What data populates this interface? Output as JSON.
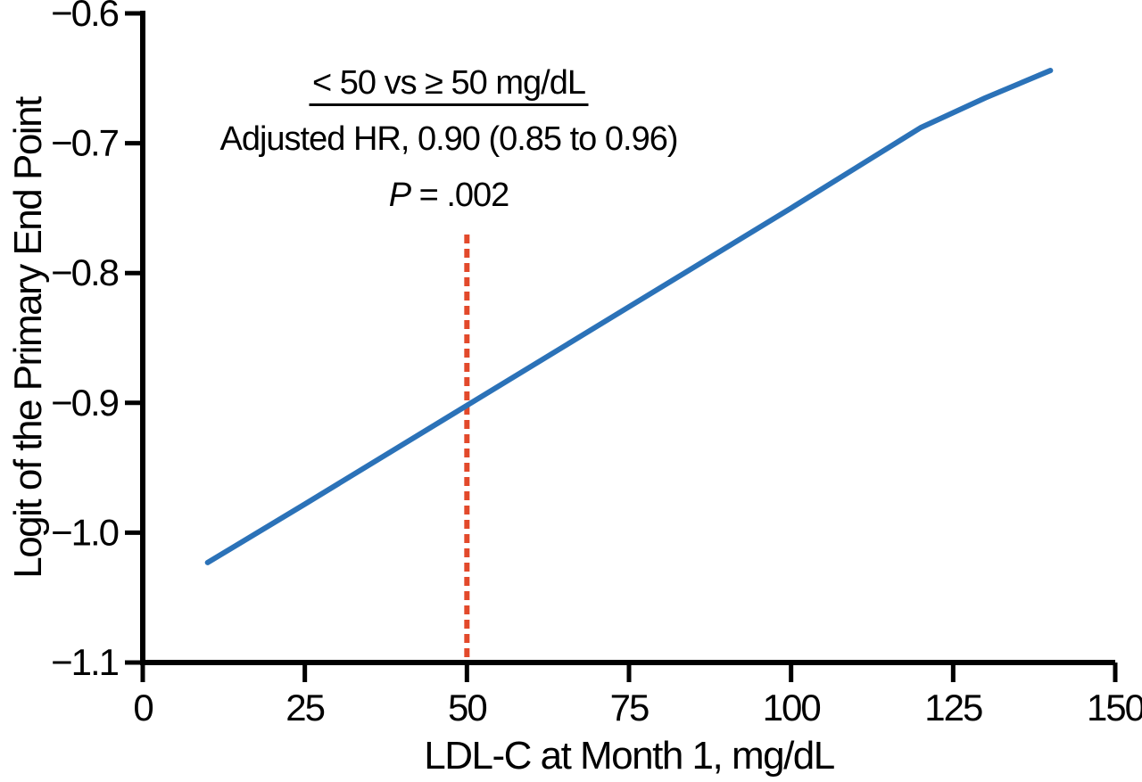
{
  "chart_data": {
    "type": "line",
    "title": "",
    "xlabel": "LDL-C at Month 1, mg/dL",
    "ylabel": "Logit of the Primary End Point",
    "xlim": [
      0,
      150
    ],
    "ylim": [
      -1.1,
      -0.6
    ],
    "grid": false,
    "legend": "none",
    "x_ticks": [
      0,
      25,
      50,
      75,
      100,
      125,
      150
    ],
    "x_tick_labels": [
      "0",
      "25",
      "50",
      "75",
      "100",
      "125",
      "150"
    ],
    "y_ticks": [
      -0.6,
      -0.7,
      -0.8,
      -0.9,
      -1.0,
      -1.1
    ],
    "y_tick_labels": [
      "−0.6",
      "−0.7",
      "−0.8",
      "−0.9",
      "−1.0",
      "−1.1"
    ],
    "series": [
      {
        "name": "logit-of-primary-end-point",
        "color": "#2b72b8",
        "x": [
          10,
          25,
          50,
          75,
          100,
          110,
          120,
          130,
          140
        ],
        "y": [
          -1.023,
          -0.978,
          -0.902,
          -0.826,
          -0.75,
          -0.719,
          -0.688,
          -0.665,
          -0.644
        ]
      }
    ],
    "reference_line": {
      "x": 50,
      "color": "#e2492b",
      "style": "dashed"
    },
    "annotation": {
      "title": "< 50 vs ≥ 50 mg/dL",
      "hr_line": "Adjusted HR, 0.90 (0.85 to 0.96)",
      "p_italic": "P",
      "p_text": " = .002"
    },
    "axis_color": "#000000"
  }
}
